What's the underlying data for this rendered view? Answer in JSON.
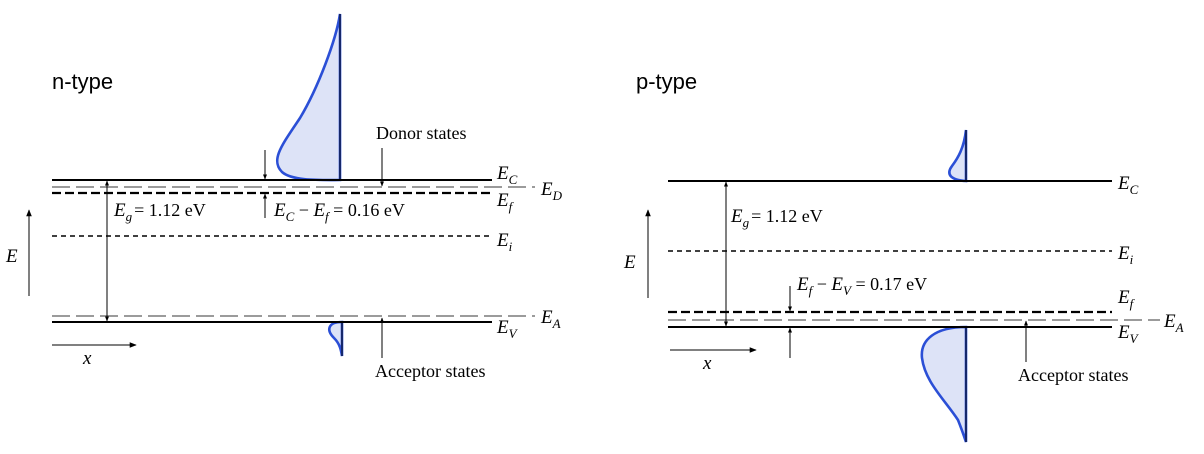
{
  "n_panel": {
    "title": "n-type",
    "donor_label": "Donor states",
    "acceptor_label": "Acceptor states",
    "energy_axis": "E",
    "position_axis": "x",
    "eg": {
      "sym": "E",
      "sub": "g",
      "rest": "= 1.12 eV"
    },
    "gap": {
      "a": "E",
      "asub": "C",
      "mid": " − ",
      "b": "E",
      "bsub": "f",
      "rest": " = 0.16 eV"
    },
    "levels": {
      "ec": {
        "sym": "E",
        "sub": "C"
      },
      "ed": {
        "sym": "E",
        "sub": "D"
      },
      "ef": {
        "sym": "E",
        "sub": "f"
      },
      "ei": {
        "sym": "E",
        "sub": "i"
      },
      "ea": {
        "sym": "E",
        "sub": "A"
      },
      "ev": {
        "sym": "E",
        "sub": "V"
      }
    }
  },
  "p_panel": {
    "title": "p-type",
    "acceptor_label": "Acceptor states",
    "energy_axis": "E",
    "position_axis": "x",
    "eg": {
      "sym": "E",
      "sub": "g",
      "rest": "= 1.12 eV"
    },
    "gap": {
      "a": "E",
      "asub": "f",
      "mid": " − ",
      "b": "E",
      "bsub": "V",
      "rest": " = 0.17 eV"
    },
    "levels": {
      "ec": {
        "sym": "E",
        "sub": "C"
      },
      "ei": {
        "sym": "E",
        "sub": "i"
      },
      "ef": {
        "sym": "E",
        "sub": "f"
      },
      "ea": {
        "sym": "E",
        "sub": "A"
      },
      "ev": {
        "sym": "E",
        "sub": "V"
      }
    }
  },
  "colors": {
    "curve": "#2b4fd6",
    "fill": "#dde3f7"
  }
}
